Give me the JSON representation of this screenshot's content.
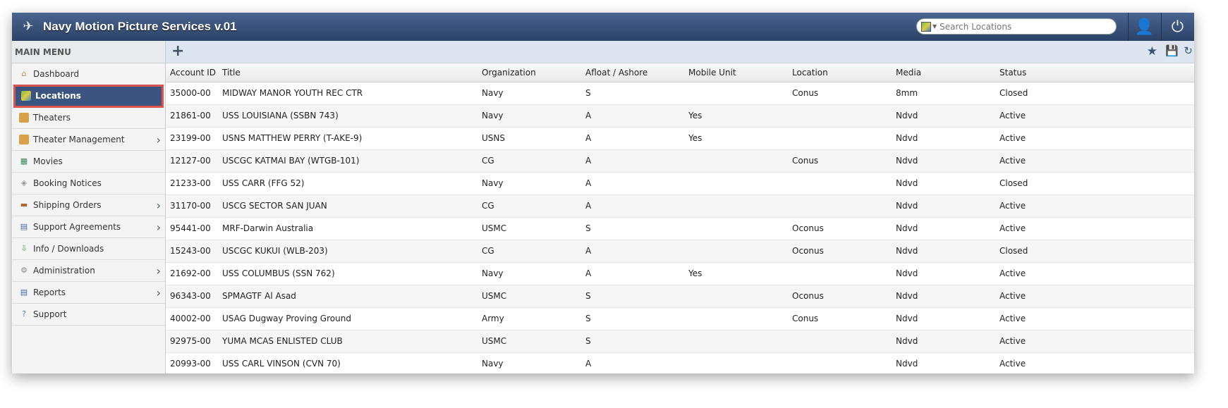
{
  "app": {
    "title": "Navy Motion Picture Services v.01"
  },
  "search": {
    "placeholder": "Search Locations"
  },
  "sidebar": {
    "heading": "MAIN MENU",
    "items": [
      {
        "label": "Dashboard",
        "icon": "home-icon",
        "chevron": false
      },
      {
        "label": "Locations",
        "icon": "map-icon",
        "chevron": false,
        "active": true
      },
      {
        "label": "Theaters",
        "icon": "door-icon",
        "chevron": false
      },
      {
        "label": "Theater Management",
        "icon": "door-icon",
        "chevron": true
      },
      {
        "label": "Movies",
        "icon": "film-icon",
        "chevron": false
      },
      {
        "label": "Booking Notices",
        "icon": "tag-icon",
        "chevron": false
      },
      {
        "label": "Shipping Orders",
        "icon": "truck-icon",
        "chevron": true
      },
      {
        "label": "Support Agreements",
        "icon": "document-icon",
        "chevron": true
      },
      {
        "label": "Info / Downloads",
        "icon": "download-icon",
        "chevron": false
      },
      {
        "label": "Administration",
        "icon": "gear-icon",
        "chevron": true
      },
      {
        "label": "Reports",
        "icon": "report-icon",
        "chevron": true
      },
      {
        "label": "Support",
        "icon": "help-icon",
        "chevron": false
      }
    ]
  },
  "table": {
    "columns": [
      "Account ID",
      "Title",
      "Organization",
      "Afloat / Ashore",
      "Mobile Unit",
      "Location",
      "Media",
      "Status"
    ],
    "rows": [
      [
        "35000-00",
        "MIDWAY MANOR YOUTH REC CTR",
        "Navy",
        "S",
        "",
        "Conus",
        "8mm",
        "Closed"
      ],
      [
        "21861-00",
        "USS LOUISIANA (SSBN 743)",
        "Navy",
        "A",
        "Yes",
        "",
        "Ndvd",
        "Active"
      ],
      [
        "23199-00",
        "USNS MATTHEW PERRY (T-AKE-9)",
        "USNS",
        "A",
        "Yes",
        "",
        "Ndvd",
        "Active"
      ],
      [
        "12127-00",
        "USCGC KATMAI BAY (WTGB-101)",
        "CG",
        "A",
        "",
        "Conus",
        "Ndvd",
        "Active"
      ],
      [
        "21233-00",
        "USS CARR (FFG 52)",
        "Navy",
        "A",
        "",
        "",
        "Ndvd",
        "Closed"
      ],
      [
        "31170-00",
        "USCG SECTOR SAN JUAN",
        "CG",
        "A",
        "",
        "",
        "Ndvd",
        "Active"
      ],
      [
        "95441-00",
        "MRF-Darwin Australia",
        "USMC",
        "S",
        "",
        "Oconus",
        "Ndvd",
        "Active"
      ],
      [
        "15243-00",
        "USCGC KUKUI (WLB-203)",
        "CG",
        "A",
        "",
        "Oconus",
        "Ndvd",
        "Closed"
      ],
      [
        "21692-00",
        "USS COLUMBUS (SSN 762)",
        "Navy",
        "A",
        "Yes",
        "",
        "Ndvd",
        "Active"
      ],
      [
        "96343-00",
        "SPMAGTF Al Asad",
        "USMC",
        "S",
        "",
        "Oconus",
        "Ndvd",
        "Active"
      ],
      [
        "40002-00",
        "USAG Dugway Proving Ground",
        "Army",
        "S",
        "",
        "Conus",
        "Ndvd",
        "Active"
      ],
      [
        "92975-00",
        "YUMA MCAS ENLISTED CLUB",
        "USMC",
        "S",
        "",
        "",
        "Ndvd",
        "Active"
      ],
      [
        "20993-00",
        "USS CARL VINSON (CVN 70)",
        "Navy",
        "A",
        "",
        "",
        "Ndvd",
        "Active"
      ]
    ]
  }
}
